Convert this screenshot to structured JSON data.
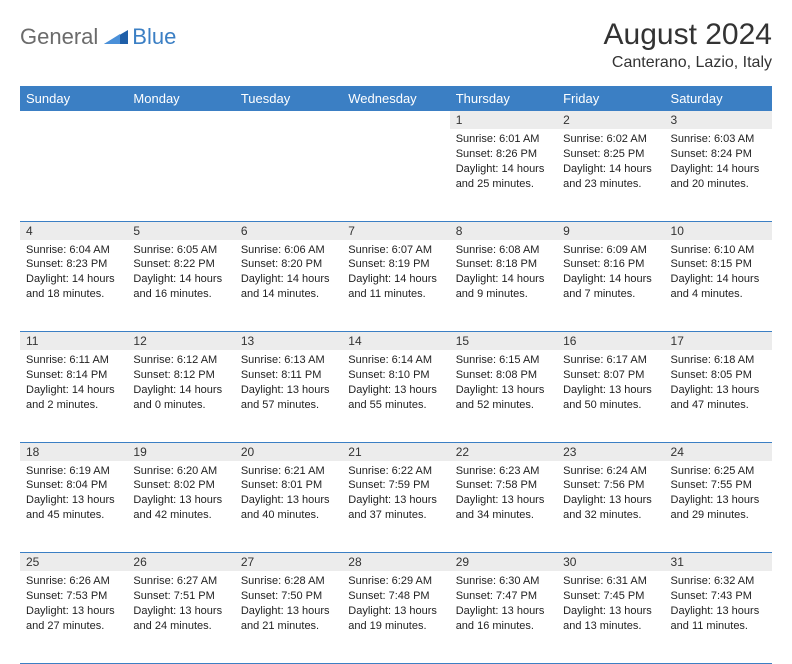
{
  "brand": {
    "part1": "General",
    "part2": "Blue"
  },
  "title": "August 2024",
  "location": "Canterano, Lazio, Italy",
  "colors": {
    "header_bg": "#3b7fc4",
    "header_text": "#ffffff",
    "daynum_bg": "#ececec",
    "text": "#333333",
    "rule": "#3b7fc4",
    "logo_gray": "#6b6b6b",
    "logo_blue": "#3b7fc4"
  },
  "typography": {
    "title_fontsize": 30,
    "location_fontsize": 16,
    "dayheader_fontsize": 13,
    "daynum_fontsize": 12,
    "cell_fontsize": 11
  },
  "day_headers": [
    "Sunday",
    "Monday",
    "Tuesday",
    "Wednesday",
    "Thursday",
    "Friday",
    "Saturday"
  ],
  "weeks": [
    [
      null,
      null,
      null,
      null,
      {
        "n": "1",
        "sr": "6:01 AM",
        "ss": "8:26 PM",
        "dl": "14 hours and 25 minutes."
      },
      {
        "n": "2",
        "sr": "6:02 AM",
        "ss": "8:25 PM",
        "dl": "14 hours and 23 minutes."
      },
      {
        "n": "3",
        "sr": "6:03 AM",
        "ss": "8:24 PM",
        "dl": "14 hours and 20 minutes."
      }
    ],
    [
      {
        "n": "4",
        "sr": "6:04 AM",
        "ss": "8:23 PM",
        "dl": "14 hours and 18 minutes."
      },
      {
        "n": "5",
        "sr": "6:05 AM",
        "ss": "8:22 PM",
        "dl": "14 hours and 16 minutes."
      },
      {
        "n": "6",
        "sr": "6:06 AM",
        "ss": "8:20 PM",
        "dl": "14 hours and 14 minutes."
      },
      {
        "n": "7",
        "sr": "6:07 AM",
        "ss": "8:19 PM",
        "dl": "14 hours and 11 minutes."
      },
      {
        "n": "8",
        "sr": "6:08 AM",
        "ss": "8:18 PM",
        "dl": "14 hours and 9 minutes."
      },
      {
        "n": "9",
        "sr": "6:09 AM",
        "ss": "8:16 PM",
        "dl": "14 hours and 7 minutes."
      },
      {
        "n": "10",
        "sr": "6:10 AM",
        "ss": "8:15 PM",
        "dl": "14 hours and 4 minutes."
      }
    ],
    [
      {
        "n": "11",
        "sr": "6:11 AM",
        "ss": "8:14 PM",
        "dl": "14 hours and 2 minutes."
      },
      {
        "n": "12",
        "sr": "6:12 AM",
        "ss": "8:12 PM",
        "dl": "14 hours and 0 minutes."
      },
      {
        "n": "13",
        "sr": "6:13 AM",
        "ss": "8:11 PM",
        "dl": "13 hours and 57 minutes."
      },
      {
        "n": "14",
        "sr": "6:14 AM",
        "ss": "8:10 PM",
        "dl": "13 hours and 55 minutes."
      },
      {
        "n": "15",
        "sr": "6:15 AM",
        "ss": "8:08 PM",
        "dl": "13 hours and 52 minutes."
      },
      {
        "n": "16",
        "sr": "6:17 AM",
        "ss": "8:07 PM",
        "dl": "13 hours and 50 minutes."
      },
      {
        "n": "17",
        "sr": "6:18 AM",
        "ss": "8:05 PM",
        "dl": "13 hours and 47 minutes."
      }
    ],
    [
      {
        "n": "18",
        "sr": "6:19 AM",
        "ss": "8:04 PM",
        "dl": "13 hours and 45 minutes."
      },
      {
        "n": "19",
        "sr": "6:20 AM",
        "ss": "8:02 PM",
        "dl": "13 hours and 42 minutes."
      },
      {
        "n": "20",
        "sr": "6:21 AM",
        "ss": "8:01 PM",
        "dl": "13 hours and 40 minutes."
      },
      {
        "n": "21",
        "sr": "6:22 AM",
        "ss": "7:59 PM",
        "dl": "13 hours and 37 minutes."
      },
      {
        "n": "22",
        "sr": "6:23 AM",
        "ss": "7:58 PM",
        "dl": "13 hours and 34 minutes."
      },
      {
        "n": "23",
        "sr": "6:24 AM",
        "ss": "7:56 PM",
        "dl": "13 hours and 32 minutes."
      },
      {
        "n": "24",
        "sr": "6:25 AM",
        "ss": "7:55 PM",
        "dl": "13 hours and 29 minutes."
      }
    ],
    [
      {
        "n": "25",
        "sr": "6:26 AM",
        "ss": "7:53 PM",
        "dl": "13 hours and 27 minutes."
      },
      {
        "n": "26",
        "sr": "6:27 AM",
        "ss": "7:51 PM",
        "dl": "13 hours and 24 minutes."
      },
      {
        "n": "27",
        "sr": "6:28 AM",
        "ss": "7:50 PM",
        "dl": "13 hours and 21 minutes."
      },
      {
        "n": "28",
        "sr": "6:29 AM",
        "ss": "7:48 PM",
        "dl": "13 hours and 19 minutes."
      },
      {
        "n": "29",
        "sr": "6:30 AM",
        "ss": "7:47 PM",
        "dl": "13 hours and 16 minutes."
      },
      {
        "n": "30",
        "sr": "6:31 AM",
        "ss": "7:45 PM",
        "dl": "13 hours and 13 minutes."
      },
      {
        "n": "31",
        "sr": "6:32 AM",
        "ss": "7:43 PM",
        "dl": "13 hours and 11 minutes."
      }
    ]
  ]
}
